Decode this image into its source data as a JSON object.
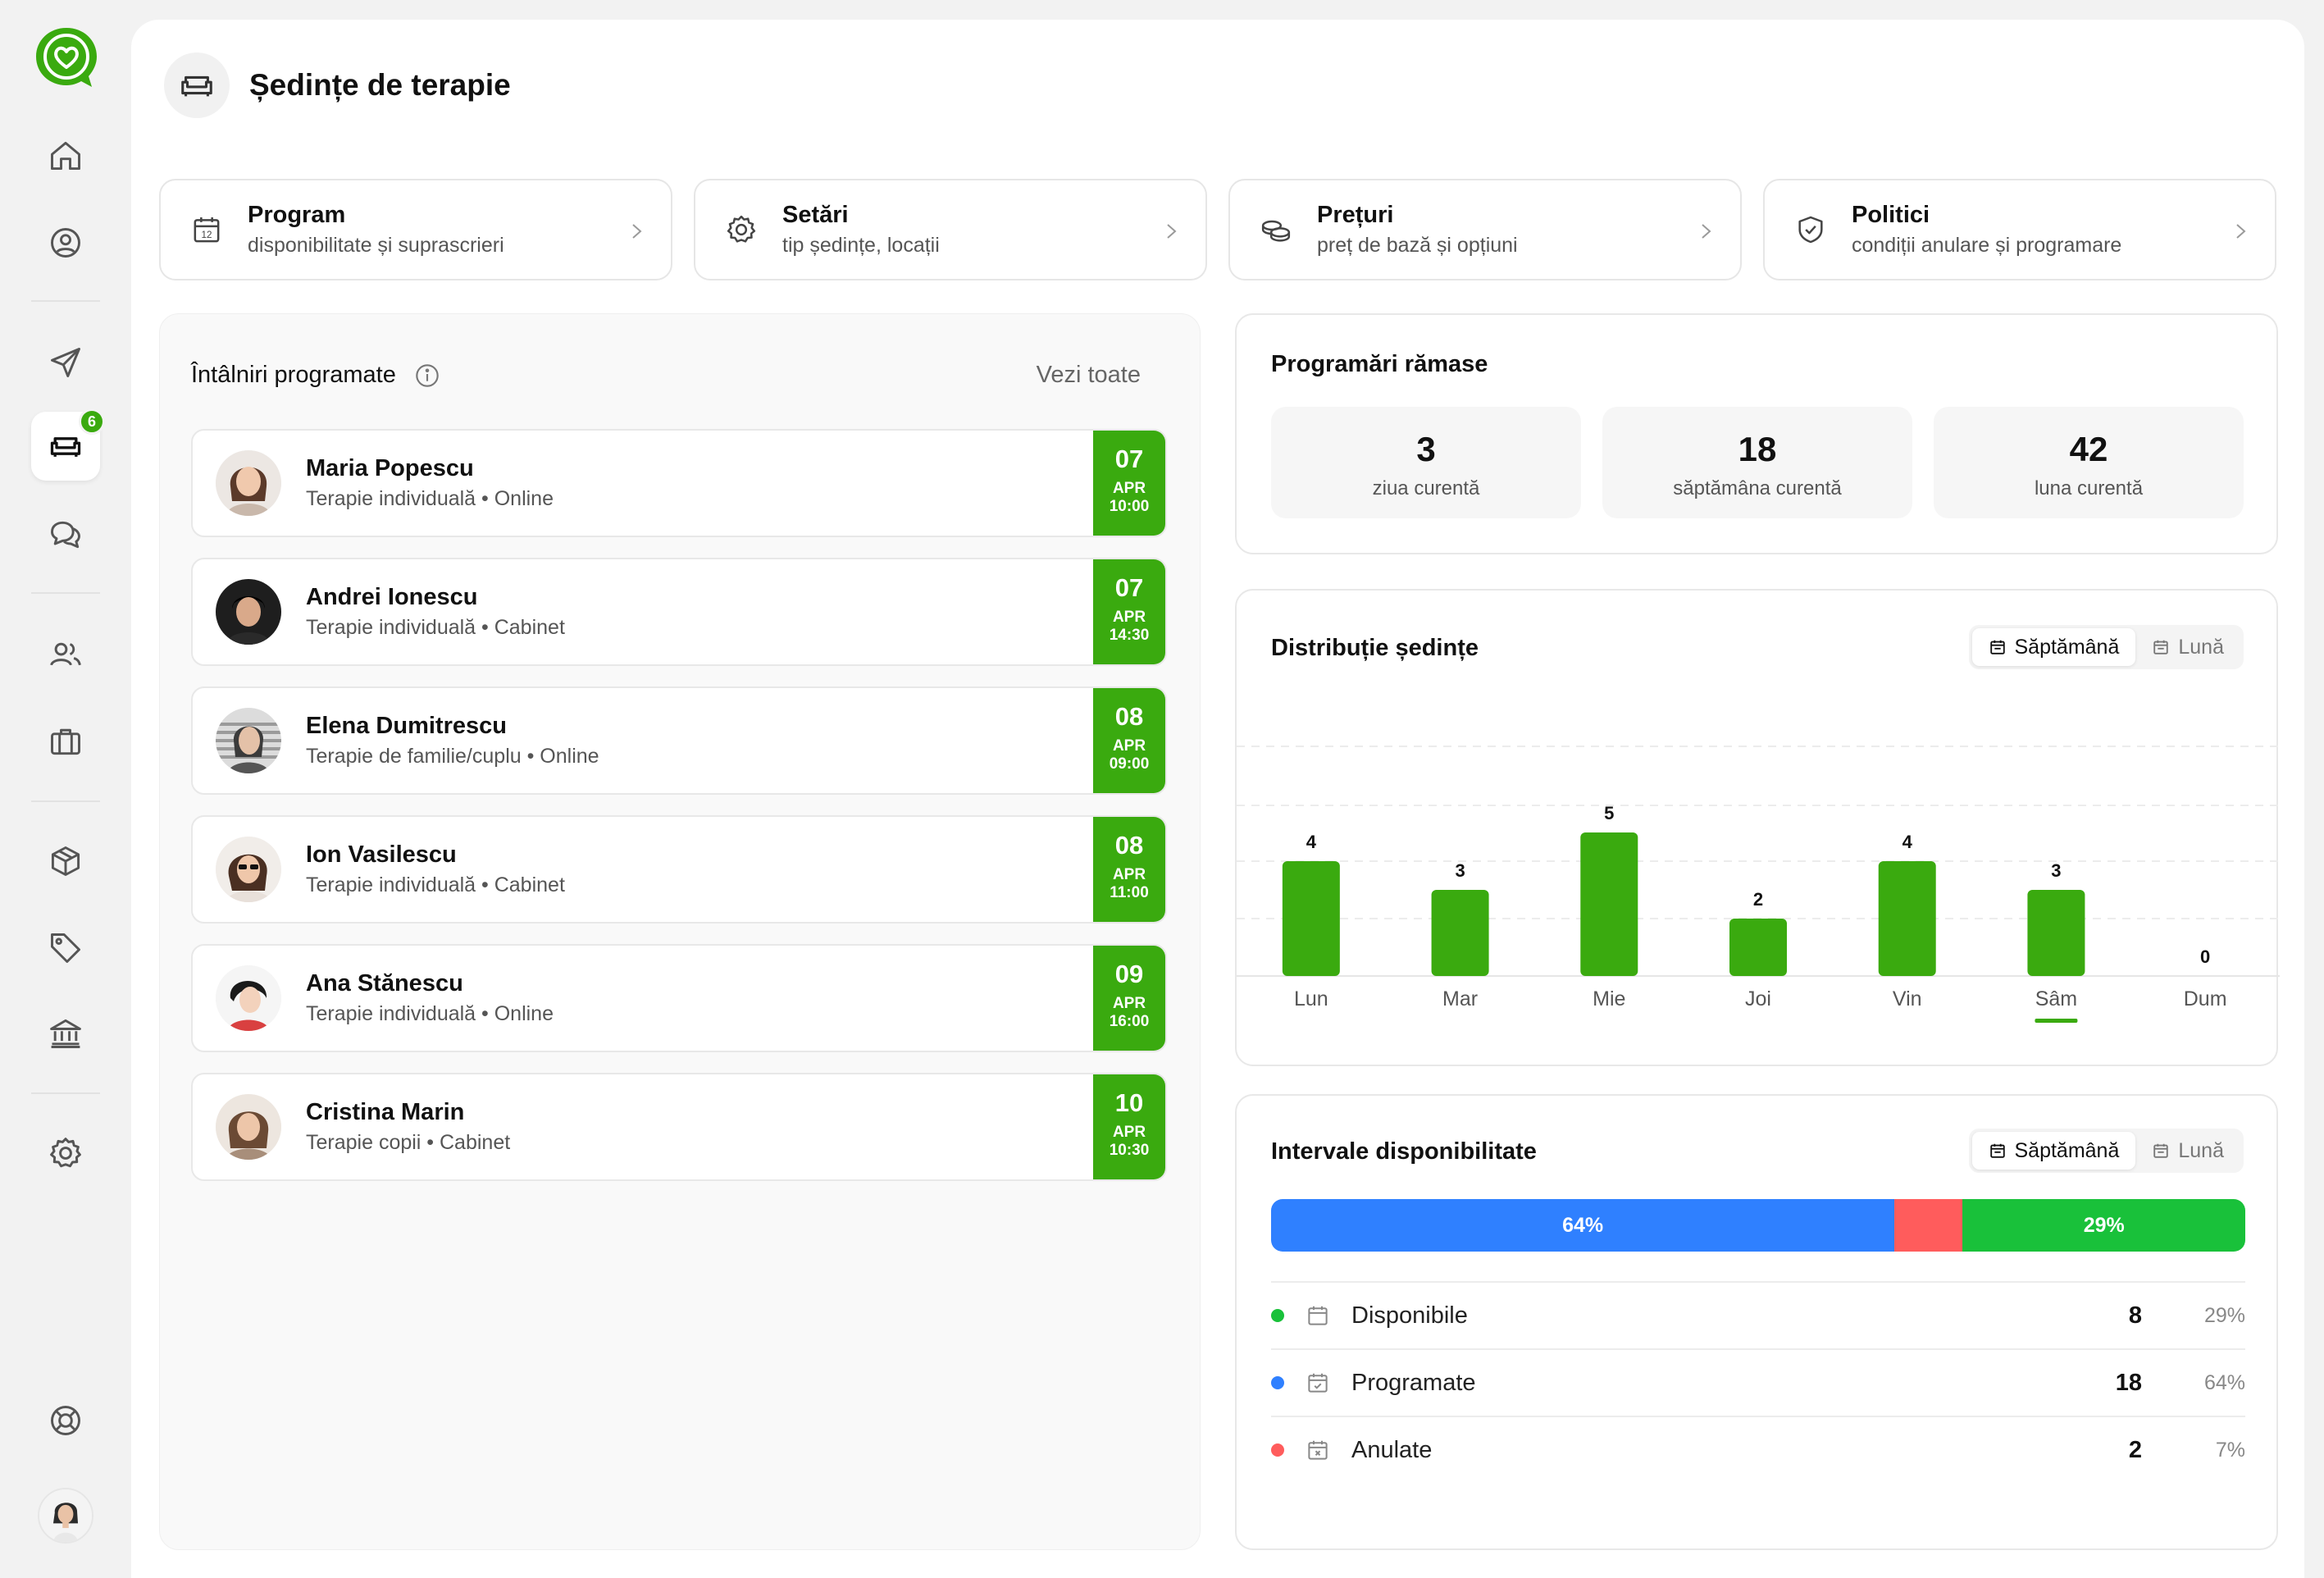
{
  "page": {
    "title": "Ședințe de terapie"
  },
  "sidebar": {
    "badge_count": "6",
    "icons": [
      "home-icon",
      "user-circle-icon",
      "send-icon",
      "sofa-icon",
      "chat-icon",
      "users-icon",
      "briefcase-icon",
      "package-icon",
      "tag-icon",
      "bank-icon",
      "settings-icon",
      "lifebuoy-icon"
    ]
  },
  "cards": [
    {
      "title": "Program",
      "subtitle": "disponibilitate și suprascrieri",
      "icon": "calendar-icon"
    },
    {
      "title": "Setări",
      "subtitle": "tip ședințe, locații",
      "icon": "gear-icon"
    },
    {
      "title": "Prețuri",
      "subtitle": "preț de bază și opțiuni",
      "icon": "coins-icon"
    },
    {
      "title": "Politici",
      "subtitle": "condiții anulare și programare",
      "icon": "shield-check-icon"
    }
  ],
  "appointments": {
    "title": "Întâlniri programate",
    "see_all": "Vezi toate",
    "items": [
      {
        "name": "Maria Popescu",
        "desc": "Terapie individuală • Online",
        "day": "07",
        "month": "APR",
        "time": "10:00"
      },
      {
        "name": "Andrei Ionescu",
        "desc": "Terapie individuală • Cabinet",
        "day": "07",
        "month": "APR",
        "time": "14:30"
      },
      {
        "name": "Elena Dumitrescu",
        "desc": "Terapie de familie/cuplu • Online",
        "day": "08",
        "month": "APR",
        "time": "09:00"
      },
      {
        "name": "Ion Vasilescu",
        "desc": "Terapie individuală • Cabinet",
        "day": "08",
        "month": "APR",
        "time": "11:00"
      },
      {
        "name": "Ana Stănescu",
        "desc": "Terapie individuală • Online",
        "day": "09",
        "month": "APR",
        "time": "16:00"
      },
      {
        "name": "Cristina Marin",
        "desc": "Terapie copii • Cabinet",
        "day": "10",
        "month": "APR",
        "time": "10:30"
      }
    ]
  },
  "remaining": {
    "title": "Programări rămase",
    "stats": [
      {
        "value": "3",
        "label": "ziua curentă"
      },
      {
        "value": "18",
        "label": "săptămâna curentă"
      },
      {
        "value": "42",
        "label": "luna curentă"
      }
    ]
  },
  "distribution": {
    "title": "Distribuție ședințe",
    "toggle": {
      "week": "Săptămână",
      "month": "Lună",
      "active": "week"
    }
  },
  "chart_data": {
    "type": "bar",
    "title": "Distribuție ședințe",
    "categories": [
      "Lun",
      "Mar",
      "Mie",
      "Joi",
      "Vin",
      "Sâm",
      "Dum"
    ],
    "values": [
      4,
      3,
      5,
      2,
      4,
      3,
      0
    ],
    "highlighted_category": "Sâm",
    "bar_color": "#3aaa0f",
    "grid": true
  },
  "availability": {
    "title": "Intervale disponibilitate",
    "toggle": {
      "week": "Săptămână",
      "month": "Lună",
      "active": "week"
    },
    "segments": [
      {
        "label": "64%",
        "fraction": 0.64,
        "color": "#2f80ff"
      },
      {
        "label": "",
        "fraction": 0.07,
        "color": "#ff5c5c"
      },
      {
        "label": "29%",
        "fraction": 0.29,
        "color": "#19c13a"
      }
    ],
    "rows": [
      {
        "name": "Disponibile",
        "count": "8",
        "pct": "29%",
        "color": "#19c13a",
        "icon": "calendar-icon"
      },
      {
        "name": "Programate",
        "count": "18",
        "pct": "64%",
        "color": "#2f80ff",
        "icon": "calendar-check-icon"
      },
      {
        "name": "Anulate",
        "count": "2",
        "pct": "7%",
        "color": "#ff5c5c",
        "icon": "calendar-x-icon"
      }
    ]
  }
}
